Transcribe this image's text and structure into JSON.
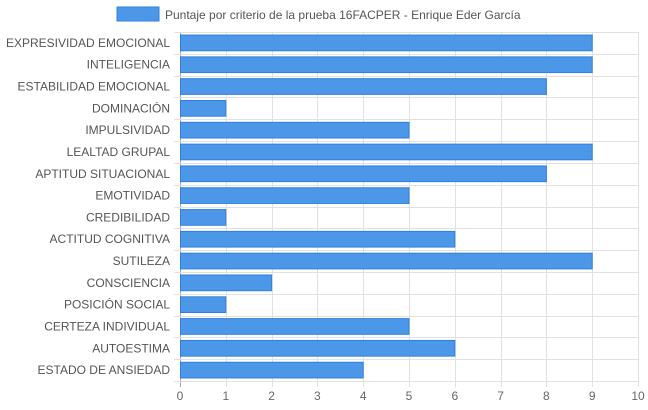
{
  "chart_data": {
    "type": "bar",
    "orientation": "horizontal",
    "legend": {
      "label": "Puntaje por criterio de la prueba 16FACPER - Enrique Eder García",
      "position": "top"
    },
    "categories": [
      "EXPRESIVIDAD EMOCIONAL",
      "INTELIGENCIA",
      "ESTABILIDAD EMOCIONAL",
      "DOMINACIÓN",
      "IMPULSIVIDAD",
      "LEALTAD GRUPAL",
      "APTITUD SITUACIONAL",
      "EMOTIVIDAD",
      "CREDIBILIDAD",
      "ACTITUD COGNITIVA",
      "SUTILEZA",
      "CONSCIENCIA",
      "POSICIÓN SOCIAL",
      "CERTEZA INDIVIDUAL",
      "AUTOESTIMA",
      "ESTADO DE ANSIEDAD"
    ],
    "values": [
      9,
      9,
      8,
      1,
      5,
      9,
      8,
      5,
      1,
      6,
      9,
      2,
      1,
      5,
      6,
      4
    ],
    "xlim": [
      0,
      10
    ],
    "xticks": [
      0,
      1,
      2,
      3,
      4,
      5,
      6,
      7,
      8,
      9,
      10
    ],
    "grid": true,
    "colors": {
      "bar_fill": "#4d97e8",
      "bar_stroke": "#2f80e0",
      "grid": "#e1e1e1",
      "axis": "#aaaaaa"
    }
  }
}
